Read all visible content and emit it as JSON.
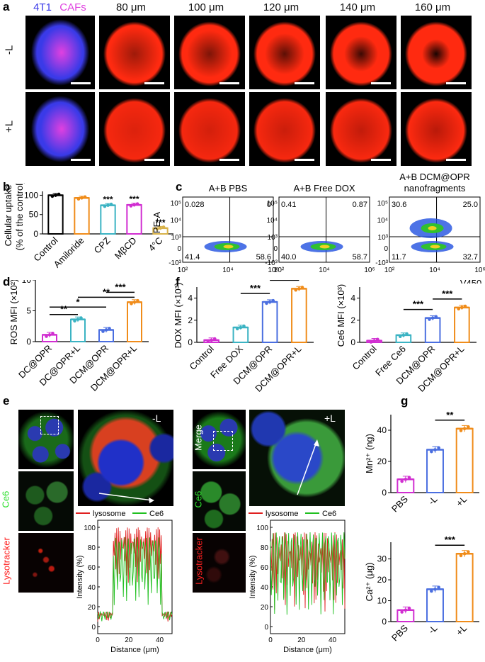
{
  "panel_a": {
    "letter": "a",
    "hdr_4t1": "4T1",
    "hdr_cafs": "CAFs",
    "headers": [
      "80 μm",
      "100 μm",
      "120 μm",
      "140 μm",
      "160 μm"
    ],
    "row_labels": [
      "-L",
      "+L"
    ],
    "colors": {
      "blue": "#3a3ae8",
      "magenta": "#e040e0",
      "red": "#ff2a10"
    }
  },
  "panel_b": {
    "letter": "b",
    "ylabel": "Cellular uptake\n(% of the control)",
    "chart_data": {
      "type": "bar",
      "categories": [
        "Control",
        "Amiloride",
        "CPZ",
        "MβCD",
        "4°C"
      ],
      "values": [
        100,
        93,
        74,
        75,
        15
      ],
      "significance": [
        "",
        "",
        "***",
        "***",
        "***"
      ],
      "colors": [
        "#000000",
        "#f08c1a",
        "#3bb3c3",
        "#d12ed1",
        "#d8b24a"
      ],
      "ylim": [
        0,
        110
      ],
      "yticks": [
        0,
        50,
        100
      ]
    }
  },
  "panel_c": {
    "letter": "c",
    "titles": [
      "A+B PBS",
      "A+B Free DOX",
      "A+B DCM@OPR",
      "nanofragments"
    ],
    "ylabel": "PE-A",
    "xlabel": "V450",
    "quadrants": [
      {
        "ul": "0.028",
        "ur": "0",
        "ll": "41.4",
        "lr": "58.6"
      },
      {
        "ul": "0.41",
        "ur": "0.87",
        "ll": "40.0",
        "lr": "58.7"
      },
      {
        "ul": "30.6",
        "ur": "25.0",
        "ll": "11.7",
        "lr": "32.7"
      }
    ]
  },
  "panel_d": {
    "letter": "d",
    "ylabel": "ROS MFI (×10²)",
    "chart_data": {
      "type": "bar",
      "categories": [
        "DC@OPR",
        "DC@OPR+L",
        "DCM@OPR",
        "DCM@OPR+L"
      ],
      "values": [
        1.1,
        3.6,
        1.9,
        6.4
      ],
      "colors": [
        "#d12ed1",
        "#3bb3c3",
        "#4a6ee0",
        "#f08c1a"
      ],
      "ylim": [
        0,
        10
      ],
      "yticks": [
        0,
        5,
        10
      ],
      "brackets": [
        {
          "from": 0,
          "to": 1,
          "label": "**"
        },
        {
          "from": 0,
          "to": 2,
          "label": "*"
        },
        {
          "from": 1,
          "to": 3,
          "label": "**"
        },
        {
          "from": 2,
          "to": 3,
          "label": "***"
        }
      ]
    }
  },
  "panel_f": {
    "letter": "f",
    "charts": [
      {
        "type": "bar",
        "ylabel": "DOX MFI (×10³)",
        "categories": [
          "Control",
          "Free DOX",
          "DCM@OPR",
          "DCM@OPR+L"
        ],
        "values": [
          0.2,
          1.35,
          3.65,
          4.85
        ],
        "colors": [
          "#d12ed1",
          "#3bb3c3",
          "#4a6ee0",
          "#f08c1a"
        ],
        "ylim": [
          0,
          5
        ],
        "yticks": [
          0,
          2,
          4
        ],
        "brackets": [
          {
            "from": 1,
            "to": 2,
            "label": "***"
          },
          {
            "from": 2,
            "to": 3,
            "label": "***"
          }
        ]
      },
      {
        "type": "bar",
        "ylabel": "Ce6 MFI (×10³)",
        "categories": [
          "Control",
          "Free Ce6",
          "DCM@OPR",
          "DCM@OPR+L"
        ],
        "values": [
          0.15,
          0.65,
          2.2,
          3.15
        ],
        "colors": [
          "#d12ed1",
          "#3bb3c3",
          "#4a6ee0",
          "#f08c1a"
        ],
        "ylim": [
          0,
          5
        ],
        "yticks": [
          0,
          2,
          4
        ],
        "brackets": [
          {
            "from": 1,
            "to": 2,
            "label": "***"
          },
          {
            "from": 2,
            "to": 3,
            "label": "***"
          }
        ]
      }
    ]
  },
  "panel_e": {
    "letter": "e",
    "left_labels": [
      "Merge",
      "Ce6",
      "Lysotracker"
    ],
    "inset_labels": [
      "-L",
      "+L"
    ],
    "legend": [
      "lysosome",
      "Ce6"
    ],
    "ylabel": "Intensity (%)",
    "xlabel": "Distance (μm)",
    "yticks": [
      0,
      20,
      40,
      60,
      80,
      100
    ],
    "xticks": [
      0,
      20,
      40
    ]
  },
  "panel_g": {
    "letter": "g",
    "charts": [
      {
        "type": "bar",
        "ylabel": "Mn²⁺ (ng)",
        "categories": [
          "PBS",
          "-L",
          "+L"
        ],
        "values": [
          8.5,
          27.5,
          41
        ],
        "colors": [
          "#d12ed1",
          "#4a6ee0",
          "#f08c1a"
        ],
        "ylim": [
          0,
          50
        ],
        "yticks": [
          0,
          20,
          40
        ],
        "brackets": [
          {
            "from": 1,
            "to": 2,
            "label": "**"
          }
        ]
      },
      {
        "type": "bar",
        "ylabel": "Ca²⁺ (μg)",
        "categories": [
          "PBS",
          "-L",
          "+L"
        ],
        "values": [
          5.5,
          15.5,
          32.5
        ],
        "colors": [
          "#d12ed1",
          "#4a6ee0",
          "#f08c1a"
        ],
        "ylim": [
          0,
          38
        ],
        "yticks": [
          0,
          10,
          20,
          30
        ],
        "brackets": [
          {
            "from": 1,
            "to": 2,
            "label": "***"
          }
        ]
      }
    ]
  }
}
